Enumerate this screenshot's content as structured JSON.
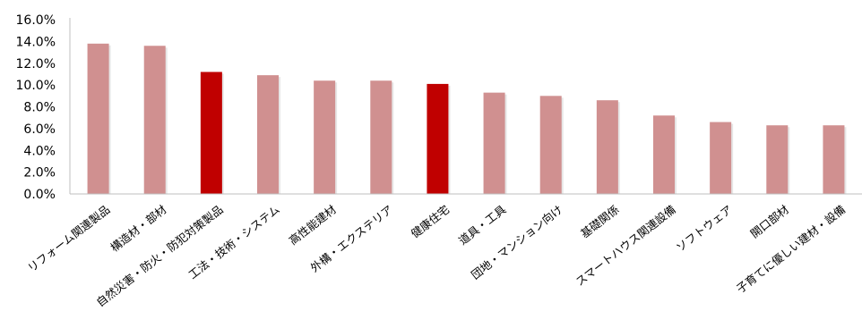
{
  "chart_data": {
    "type": "bar",
    "title": "",
    "xlabel": "",
    "ylabel": "",
    "ylim": [
      0,
      0.16
    ],
    "y_ticks": [
      "0.0%",
      "2.0%",
      "4.0%",
      "6.0%",
      "8.0%",
      "10.0%",
      "12.0%",
      "14.0%",
      "16.0%"
    ],
    "grid": false,
    "legend": "none",
    "categories": [
      "リフォーム関連製品",
      "構造材・部材",
      "自然災害・防火・防犯対策製品",
      "工法・技術・システム",
      "高性能建材",
      "外構・エクステリア",
      "健康住宅",
      "道具・工具",
      "団地・マンション向け",
      "基礎関係",
      "スマートハウス関連設備",
      "ソフトウェア",
      "開口部材",
      "子育てに優しい建材・設備"
    ],
    "values": [
      0.138,
      0.136,
      0.112,
      0.109,
      0.104,
      0.104,
      0.101,
      0.093,
      0.09,
      0.086,
      0.072,
      0.066,
      0.063,
      0.063
    ],
    "highlighted": [
      2,
      6
    ],
    "colors": {
      "bar": "#d09090",
      "highlight": "#c00000",
      "axis": "#bfbfbf"
    }
  }
}
